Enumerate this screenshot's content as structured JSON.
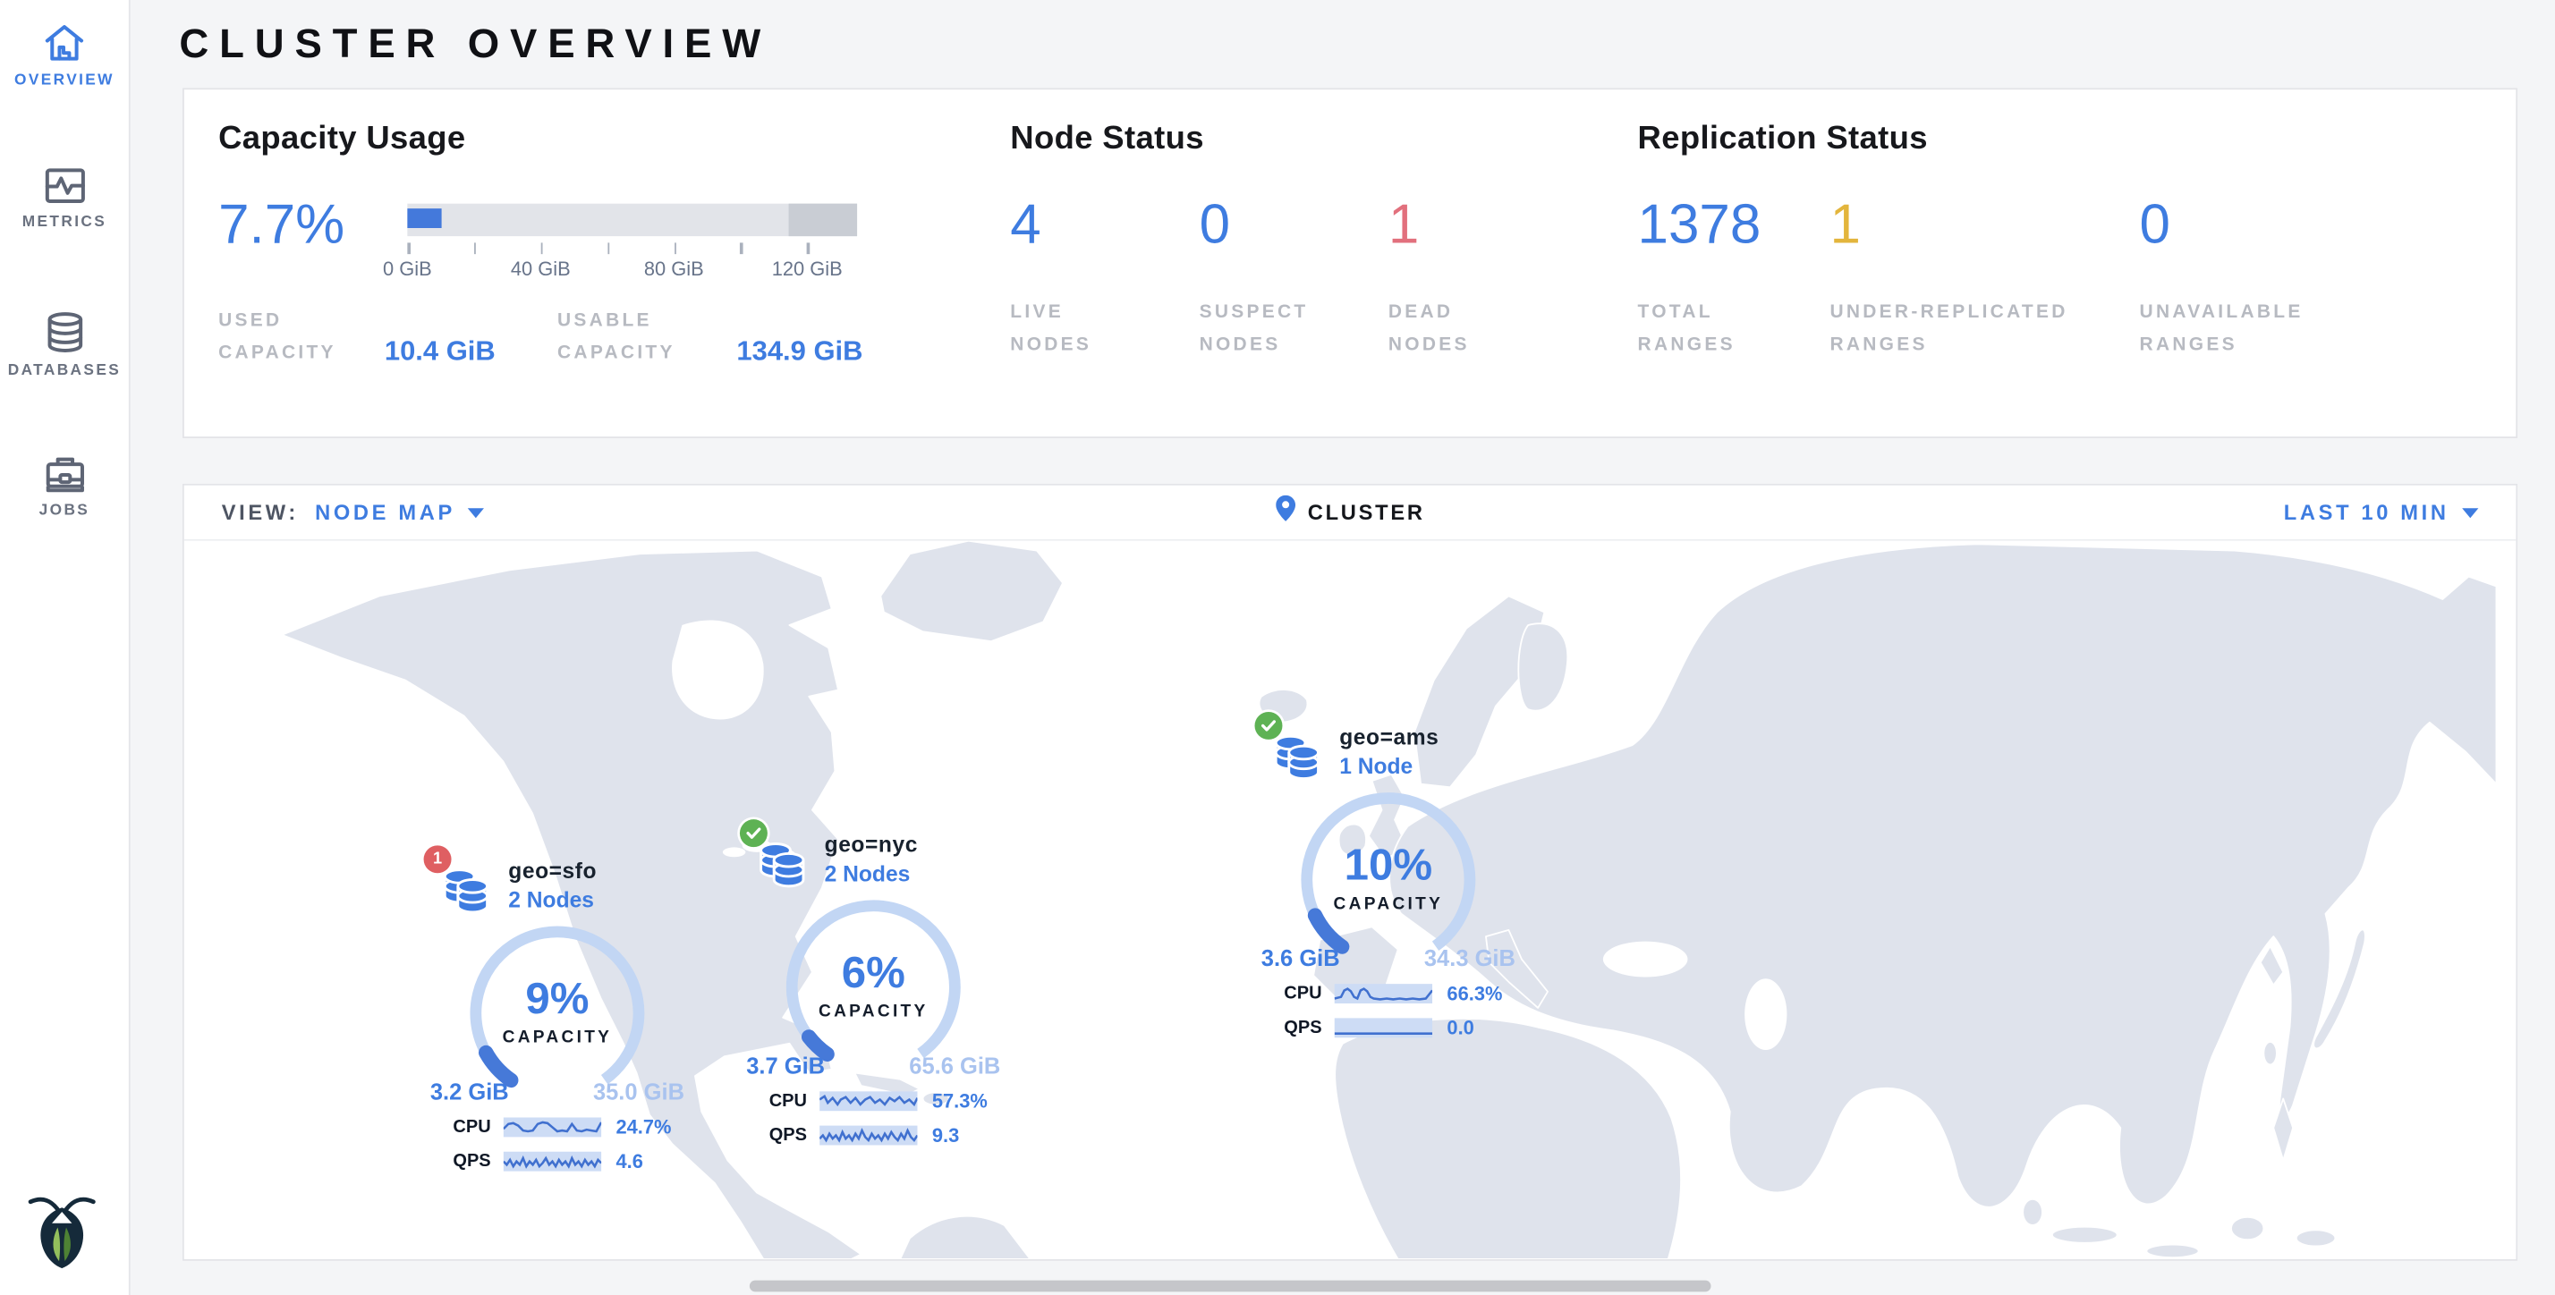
{
  "colors": {
    "accent_blue": "#3e7ce0",
    "light_blue": "#a9c3ef",
    "gauge_light": "#c2d6f4",
    "gauge_dark": "#4679d8",
    "dead_red": "#e2707d",
    "badge_red": "#df5f62",
    "ok_green": "#5eb254",
    "warn_yellow": "#e3b53c"
  },
  "sidebar": {
    "items": [
      {
        "label": "OVERVIEW"
      },
      {
        "label": "METRICS"
      },
      {
        "label": "DATABASES"
      },
      {
        "label": "JOBS"
      }
    ]
  },
  "header": {
    "title": "CLUSTER OVERVIEW"
  },
  "summary": {
    "capacity": {
      "title": "Capacity Usage",
      "pct": "7.7%",
      "pct_value": 7.7,
      "tick_labels": [
        "0 GiB",
        "40 GiB",
        "80 GiB",
        "120 GiB"
      ],
      "used_label": "USED CAPACITY",
      "used_value": "10.4 GiB",
      "usable_label": "USABLE CAPACITY",
      "usable_value": "134.9 GiB"
    },
    "nodes": {
      "title": "Node Status",
      "live": {
        "value": "4",
        "label": "LIVE NODES"
      },
      "suspect": {
        "value": "0",
        "label": "SUSPECT NODES"
      },
      "dead": {
        "value": "1",
        "label": "DEAD NODES"
      }
    },
    "replication": {
      "title": "Replication Status",
      "total": {
        "value": "1378",
        "label": "TOTAL RANGES"
      },
      "under": {
        "value": "1",
        "label": "UNDER-REPLICATED RANGES"
      },
      "unavailable": {
        "value": "0",
        "label": "UNAVAILABLE RANGES"
      }
    }
  },
  "toolbar": {
    "view_label": "VIEW:",
    "view_value": "NODE MAP",
    "breadcrumb": "CLUSTER",
    "time_window": "LAST 10 MIN"
  },
  "localities": [
    {
      "name": "geo=sfo",
      "nodes": "2 Nodes",
      "badge": "1",
      "capacity_pct": "9%",
      "capacity_pct_value": 9,
      "capacity_label": "CAPACITY",
      "used": "3.2 GiB",
      "total": "35.0 GiB",
      "cpu_label": "CPU",
      "cpu": "24.7%",
      "qps_label": "QPS",
      "qps": "4.6"
    },
    {
      "name": "geo=nyc",
      "nodes": "2 Nodes",
      "capacity_pct": "6%",
      "capacity_pct_value": 6,
      "capacity_label": "CAPACITY",
      "used": "3.7 GiB",
      "total": "65.6 GiB",
      "cpu_label": "CPU",
      "cpu": "57.3%",
      "qps_label": "QPS",
      "qps": "9.3"
    },
    {
      "name": "geo=ams",
      "nodes": "1 Node",
      "capacity_pct": "10%",
      "capacity_pct_value": 10,
      "capacity_label": "CAPACITY",
      "used": "3.6 GiB",
      "total": "34.3 GiB",
      "cpu_label": "CPU",
      "cpu": "66.3%",
      "qps_label": "QPS",
      "qps": "0.0"
    }
  ]
}
